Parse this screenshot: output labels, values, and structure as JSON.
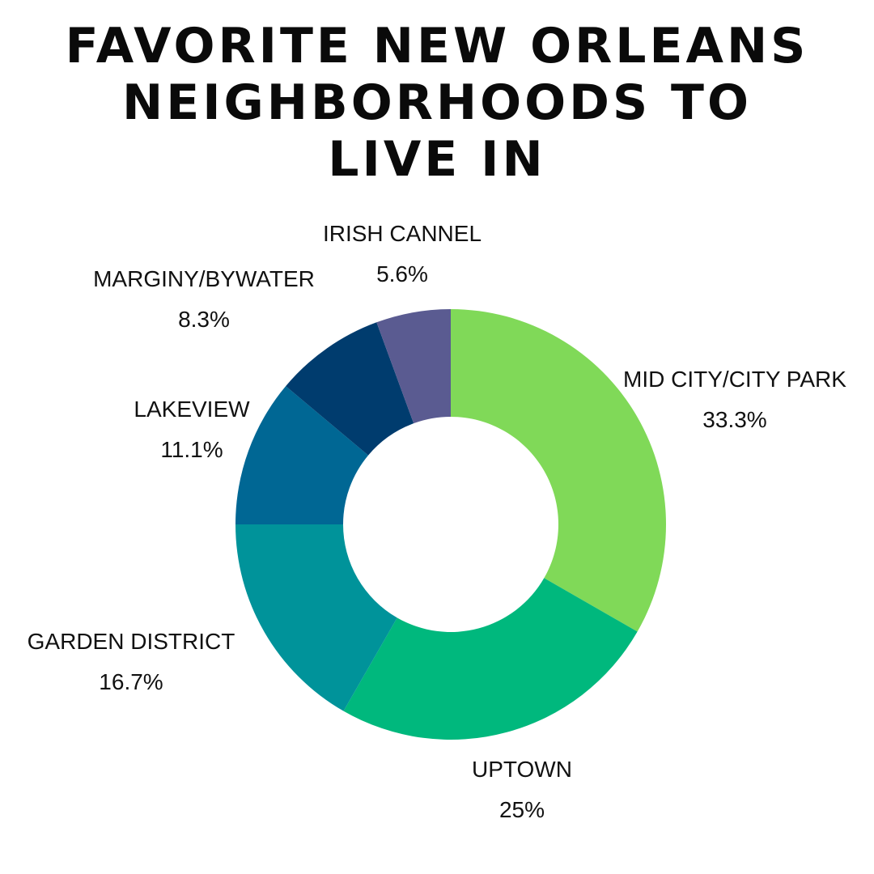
{
  "title_lines": [
    "FAVORITE NEW ORLEANS",
    "NEIGHBORHOODS TO",
    "LIVE IN"
  ],
  "chart_data": {
    "type": "pie",
    "donut": true,
    "title": "FAVORITE NEW ORLEANS NEIGHBORHOODS TO LIVE IN",
    "slices": [
      {
        "label": "MID CITY/CITY PARK",
        "value": 33.3,
        "value_label": "33.3%",
        "color": "#80d958"
      },
      {
        "label": "UPTOWN",
        "value": 25,
        "value_label": "25%",
        "color": "#00b87d"
      },
      {
        "label": "GARDEN DISTRICT",
        "value": 16.7,
        "value_label": "16.7%",
        "color": "#00939a"
      },
      {
        "label": "LAKEVIEW",
        "value": 11.1,
        "value_label": "11.1%",
        "color": "#006794"
      },
      {
        "label": "MARGINY/BYWATER",
        "value": 8.3,
        "value_label": "8.3%",
        "color": "#003c6e"
      },
      {
        "label": "IRISH CANNEL",
        "value": 5.6,
        "value_label": "5.6%",
        "color": "#5a5b91"
      }
    ],
    "start_angle": "12 o'clock",
    "direction": "clockwise",
    "legend": "none"
  }
}
